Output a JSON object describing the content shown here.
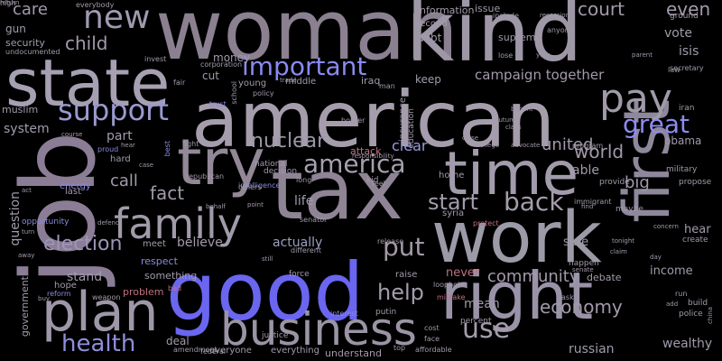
{
  "palette": {
    "background": "#000000",
    "mauve": "#8a7f8f",
    "slate": "#a09aa8",
    "lavender": "#9a93c8",
    "blue": "#6b6bf0",
    "rose": "#c0707a",
    "dim": "#6e6876"
  },
  "words": [
    {
      "text": "woman",
      "size": 92,
      "color": "#8a8090"
    },
    {
      "text": "kind",
      "size": 92,
      "color": "#9e97a6"
    },
    {
      "text": "american",
      "size": 86,
      "color": "#a69dac"
    },
    {
      "text": "state",
      "size": 72,
      "color": "#a7a0b3"
    },
    {
      "text": "job",
      "size": 112,
      "color": "#8b7d95"
    },
    {
      "text": "tax",
      "size": 92,
      "color": "#8f8495"
    },
    {
      "text": "try",
      "size": 70,
      "color": "#928897"
    },
    {
      "text": "time",
      "size": 66,
      "color": "#a29bac"
    },
    {
      "text": "work",
      "size": 78,
      "color": "#9b9aa6"
    },
    {
      "text": "first",
      "size": 70,
      "color": "#8f889c"
    },
    {
      "text": "right",
      "size": 72,
      "color": "#9a93a8"
    },
    {
      "text": "good",
      "size": 88,
      "color": "#6a66f0"
    },
    {
      "text": "plan",
      "size": 60,
      "color": "#9e97a8"
    },
    {
      "text": "business",
      "size": 50,
      "color": "#9b94a4"
    },
    {
      "text": "family",
      "size": 46,
      "color": "#a19aa9"
    },
    {
      "text": "pay",
      "size": 44,
      "color": "#a09aa8"
    },
    {
      "text": "new",
      "size": 36,
      "color": "#a09ab0"
    },
    {
      "text": "support",
      "size": 32,
      "color": "#9a9ad0"
    },
    {
      "text": "important",
      "size": 28,
      "color": "#8a8af0"
    },
    {
      "text": "health",
      "size": 26,
      "color": "#8e8edc"
    },
    {
      "text": "great",
      "size": 28,
      "color": "#8c8cf0"
    },
    {
      "text": "america",
      "size": 28,
      "color": "#a6a0b0"
    },
    {
      "text": "back",
      "size": 28,
      "color": "#a49cac"
    },
    {
      "text": "use",
      "size": 30,
      "color": "#a49cac"
    },
    {
      "text": "put",
      "size": 28,
      "color": "#a29aa8"
    },
    {
      "text": "help",
      "size": 24,
      "color": "#a49cac"
    },
    {
      "text": "start",
      "size": 24,
      "color": "#a49cac"
    },
    {
      "text": "nuclear",
      "size": 22,
      "color": "#9d96a8"
    },
    {
      "text": "election",
      "size": 22,
      "color": "#9c96b8"
    },
    {
      "text": "court",
      "size": 20,
      "color": "#a29aab"
    },
    {
      "text": "even",
      "size": 20,
      "color": "#a29aab"
    },
    {
      "text": "child",
      "size": 20,
      "color": "#a29aab"
    },
    {
      "text": "care",
      "size": 18,
      "color": "#a29aab"
    },
    {
      "text": "fact",
      "size": 20,
      "color": "#a29aab"
    },
    {
      "text": "call",
      "size": 18,
      "color": "#a29aab"
    },
    {
      "text": "world",
      "size": 20,
      "color": "#a29aab"
    },
    {
      "text": "economy",
      "size": 20,
      "color": "#a29aab"
    },
    {
      "text": "community",
      "size": 18,
      "color": "#a29aab"
    },
    {
      "text": "clear",
      "size": 16,
      "color": "#9a9ae0"
    },
    {
      "text": "big",
      "size": 18,
      "color": "#a29aab"
    },
    {
      "text": "united",
      "size": 18,
      "color": "#a29aab"
    },
    {
      "text": "campaign together",
      "size": 15,
      "color": "#a29aab"
    },
    {
      "text": "vote",
      "size": 14,
      "color": "#a29aab"
    },
    {
      "text": "isis",
      "size": 14,
      "color": "#a29aab"
    },
    {
      "text": "system",
      "size": 14,
      "color": "#a29aab"
    },
    {
      "text": "part",
      "size": 14,
      "color": "#a29aab"
    },
    {
      "text": "life",
      "size": 14,
      "color": "#a29aab"
    },
    {
      "text": "believe",
      "size": 14,
      "color": "#a29aab"
    },
    {
      "text": "actually",
      "size": 14,
      "color": "#9aa0c0"
    },
    {
      "text": "stand",
      "size": 14,
      "color": "#a29aab"
    },
    {
      "text": "mean",
      "size": 14,
      "color": "#a29aab"
    },
    {
      "text": "able",
      "size": 14,
      "color": "#a29aab"
    },
    {
      "text": "sure",
      "size": 13,
      "color": "#a29aab"
    },
    {
      "text": "hear",
      "size": 13,
      "color": "#a29aab"
    },
    {
      "text": "income",
      "size": 13,
      "color": "#a29aab"
    },
    {
      "text": "debate",
      "size": 11,
      "color": "#a29aab"
    },
    {
      "text": "wealthy",
      "size": 14,
      "color": "#a29aab"
    },
    {
      "text": "russian",
      "size": 14,
      "color": "#a29aab"
    },
    {
      "text": "question",
      "size": 14,
      "color": "#a29aab"
    },
    {
      "text": "respect",
      "size": 11,
      "color": "#8a8ae0"
    },
    {
      "text": "never",
      "size": 13,
      "color": "#c07080"
    },
    {
      "text": "problem",
      "size": 11,
      "color": "#c07080"
    },
    {
      "text": "attack",
      "size": 11,
      "color": "#c07080"
    },
    {
      "text": "deal",
      "size": 12,
      "color": "#a29aab"
    },
    {
      "text": "obama",
      "size": 12,
      "color": "#a29aab"
    },
    {
      "text": "money",
      "size": 12,
      "color": "#a29aab"
    },
    {
      "text": "gun",
      "size": 12,
      "color": "#a29aab"
    },
    {
      "text": "security",
      "size": 11,
      "color": "#a29aab"
    },
    {
      "text": "muslim",
      "size": 11,
      "color": "#a29aab"
    },
    {
      "text": "government",
      "size": 11,
      "color": "#a29aab"
    },
    {
      "text": "something",
      "size": 11,
      "color": "#a29aab"
    },
    {
      "text": "everyone",
      "size": 10,
      "color": "#a29aab"
    },
    {
      "text": "everything",
      "size": 10,
      "color": "#a29aab"
    },
    {
      "text": "understand",
      "size": 11,
      "color": "#a29aab"
    },
    {
      "text": "information",
      "size": 11,
      "color": "#a29aab"
    },
    {
      "text": "second",
      "size": 10,
      "color": "#a29aab"
    },
    {
      "text": "debt",
      "size": 12,
      "color": "#a29aab"
    },
    {
      "text": "keep",
      "size": 12,
      "color": "#a29aab"
    },
    {
      "text": "iraq",
      "size": 11,
      "color": "#a29aab"
    },
    {
      "text": "issue",
      "size": 11,
      "color": "#a29aab"
    },
    {
      "text": "supreme",
      "size": 11,
      "color": "#a29aab"
    },
    {
      "text": "cut",
      "size": 12,
      "color": "#a29aab"
    },
    {
      "text": "young",
      "size": 10,
      "color": "#a29aab"
    },
    {
      "text": "middle",
      "size": 10,
      "color": "#a29aab"
    },
    {
      "text": "hard",
      "size": 10,
      "color": "#a29aab"
    },
    {
      "text": "energy",
      "size": 10,
      "color": "#8a8ae0"
    },
    {
      "text": "opportunity",
      "size": 9,
      "color": "#8a8ae0"
    },
    {
      "text": "hope",
      "size": 10,
      "color": "#a29aab"
    },
    {
      "text": "last",
      "size": 10,
      "color": "#a29aab"
    },
    {
      "text": "meet",
      "size": 10,
      "color": "#a29aab"
    },
    {
      "text": "force",
      "size": 9,
      "color": "#a29aab"
    },
    {
      "text": "syria",
      "size": 10,
      "color": "#a29aab"
    },
    {
      "text": "national",
      "size": 9,
      "color": "#a29aab"
    },
    {
      "text": "decision",
      "size": 9,
      "color": "#a29aab"
    },
    {
      "text": "home",
      "size": 10,
      "color": "#a29aab"
    },
    {
      "text": "kid",
      "size": 9,
      "color": "#a29aab"
    },
    {
      "text": "education",
      "size": 9,
      "color": "#a29aab"
    },
    {
      "text": "insurance",
      "size": 10,
      "color": "#a29aab"
    },
    {
      "text": "raise",
      "size": 10,
      "color": "#a29aab"
    },
    {
      "text": "justice",
      "size": 9,
      "color": "#a29aab"
    },
    {
      "text": "putin",
      "size": 9,
      "color": "#a29aab"
    },
    {
      "text": "percent",
      "size": 9,
      "color": "#a29aab"
    },
    {
      "text": "build",
      "size": 9,
      "color": "#a29aab"
    },
    {
      "text": "police",
      "size": 9,
      "color": "#a29aab"
    },
    {
      "text": "happen",
      "size": 9,
      "color": "#a29aab"
    },
    {
      "text": "create",
      "size": 9,
      "color": "#a29aab"
    },
    {
      "text": "maybe",
      "size": 9,
      "color": "#a29aab"
    },
    {
      "text": "propose",
      "size": 9,
      "color": "#a29aab"
    },
    {
      "text": "provide",
      "size": 9,
      "color": "#a29aab"
    },
    {
      "text": "military",
      "size": 9,
      "color": "#a29aab"
    },
    {
      "text": "iran",
      "size": 9,
      "color": "#a29aab"
    },
    {
      "text": "ground",
      "size": 9,
      "color": "#a29aab"
    },
    {
      "text": "secretary",
      "size": 8,
      "color": "#a29aab"
    },
    {
      "text": "everybody",
      "size": 8,
      "color": "#a29aab"
    },
    {
      "text": "undocumented",
      "size": 8,
      "color": "#a29aab"
    },
    {
      "text": "invest",
      "size": 8,
      "color": "#a29aab"
    },
    {
      "text": "corporation",
      "size": 8,
      "color": "#a29aab"
    },
    {
      "text": "proud",
      "size": 8,
      "color": "#8a8ae0"
    },
    {
      "text": "fight",
      "size": 8,
      "color": "#a29aab"
    },
    {
      "text": "intelligence",
      "size": 8,
      "color": "#8a8ae0"
    },
    {
      "text": "best",
      "size": 8,
      "color": "#8a8ae0"
    },
    {
      "text": "republican",
      "size": 8,
      "color": "#a29aab"
    },
    {
      "text": "release",
      "size": 8,
      "color": "#a29aab"
    },
    {
      "text": "loophole",
      "size": 8,
      "color": "#a29aab"
    },
    {
      "text": "mistake",
      "size": 8,
      "color": "#c07080"
    },
    {
      "text": "weapon",
      "size": 8,
      "color": "#a29aab"
    },
    {
      "text": "reform",
      "size": 8,
      "color": "#8a8ae0"
    },
    {
      "text": "bad",
      "size": 8,
      "color": "#c07080"
    },
    {
      "text": "amendment",
      "size": 8,
      "color": "#a29aab"
    },
    {
      "text": "federal",
      "size": 8,
      "color": "#a29aab"
    },
    {
      "text": "affordable",
      "size": 8,
      "color": "#a29aab"
    },
    {
      "text": "immigrant",
      "size": 8,
      "color": "#a29aab"
    },
    {
      "text": "protect",
      "size": 8,
      "color": "#c07080"
    },
    {
      "text": "border",
      "size": 8,
      "color": "#a29aab"
    },
    {
      "text": "trust",
      "size": 8,
      "color": "#8a8ae0"
    },
    {
      "text": "school",
      "size": 8,
      "color": "#a29aab"
    },
    {
      "text": "recession",
      "size": 7,
      "color": "#a29aab"
    },
    {
      "text": "include",
      "size": 8,
      "color": "#a29aab"
    },
    {
      "text": "anyone",
      "size": 8,
      "color": "#a29aab"
    },
    {
      "text": "lose",
      "size": 8,
      "color": "#a29aab"
    },
    {
      "text": "york",
      "size": 7,
      "color": "#a29aab"
    },
    {
      "text": "parent",
      "size": 7,
      "color": "#a29aab"
    },
    {
      "text": "law",
      "size": 8,
      "color": "#a29aab"
    },
    {
      "text": "ask",
      "size": 8,
      "color": "#a29aab"
    },
    {
      "text": "face",
      "size": 8,
      "color": "#a29aab"
    },
    {
      "text": "top",
      "size": 8,
      "color": "#a29aab"
    },
    {
      "text": "cost",
      "size": 8,
      "color": "#a29aab"
    },
    {
      "text": "senate",
      "size": 7,
      "color": "#a29aab"
    },
    {
      "text": "claim",
      "size": 7,
      "color": "#a29aab"
    },
    {
      "text": "tonight",
      "size": 7,
      "color": "#a29aab"
    },
    {
      "text": "day",
      "size": 7,
      "color": "#a29aab"
    },
    {
      "text": "concern",
      "size": 7,
      "color": "#a29aab"
    },
    {
      "text": "run",
      "size": 8,
      "color": "#a29aab"
    },
    {
      "text": "add",
      "size": 7,
      "color": "#a29aab"
    },
    {
      "text": "china",
      "size": 7,
      "color": "#a29aab"
    },
    {
      "text": "interest",
      "size": 8,
      "color": "#8a8ae0"
    },
    {
      "text": "still",
      "size": 7,
      "color": "#a29aab"
    },
    {
      "text": "different",
      "size": 8,
      "color": "#a29aab"
    },
    {
      "text": "point",
      "size": 7,
      "color": "#a29aab"
    },
    {
      "text": "behalf",
      "size": 7,
      "color": "#a29aab"
    },
    {
      "text": "senator",
      "size": 8,
      "color": "#a29aab"
    },
    {
      "text": "others",
      "size": 8,
      "color": "#a29aab"
    },
    {
      "text": "long",
      "size": 8,
      "color": "#a29aab"
    },
    {
      "text": "feel",
      "size": 8,
      "color": "#a29aab"
    },
    {
      "text": "responsibility",
      "size": 7,
      "color": "#a29aab"
    },
    {
      "text": "college",
      "size": 7,
      "color": "#a29aab"
    },
    {
      "text": "advocate",
      "size": 7,
      "color": "#a29aab"
    },
    {
      "text": "program",
      "size": 8,
      "color": "#a29aab"
    },
    {
      "text": "find",
      "size": 7,
      "color": "#a29aab"
    },
    {
      "text": "class",
      "size": 7,
      "color": "#a29aab"
    },
    {
      "text": "future",
      "size": 7,
      "color": "#a29aab"
    },
    {
      "text": "benefit",
      "size": 7,
      "color": "#a29aab"
    },
    {
      "text": "close",
      "size": 7,
      "color": "#a29aab"
    },
    {
      "text": "trade",
      "size": 7,
      "color": "#a29aab"
    },
    {
      "text": "man",
      "size": 8,
      "color": "#a29aab"
    },
    {
      "text": "fair",
      "size": 8,
      "color": "#a29aab"
    },
    {
      "text": "policy",
      "size": 8,
      "color": "#a29aab"
    },
    {
      "text": "course",
      "size": 7,
      "color": "#a29aab"
    },
    {
      "text": "hear",
      "size": 7,
      "color": "#a29aab"
    },
    {
      "text": "case",
      "size": 7,
      "color": "#a29aab"
    },
    {
      "text": "act",
      "size": 7,
      "color": "#a29aab"
    },
    {
      "text": "turn",
      "size": 7,
      "color": "#a29aab"
    },
    {
      "text": "away",
      "size": 7,
      "color": "#a29aab"
    },
    {
      "text": "defend",
      "size": 7,
      "color": "#a29aab"
    },
    {
      "text": "buy",
      "size": 7,
      "color": "#a29aab"
    },
    {
      "text": "high",
      "size": 8,
      "color": "#a29aab"
    },
    {
      "text": "return",
      "size": 7,
      "color": "#a29aab"
    }
  ]
}
